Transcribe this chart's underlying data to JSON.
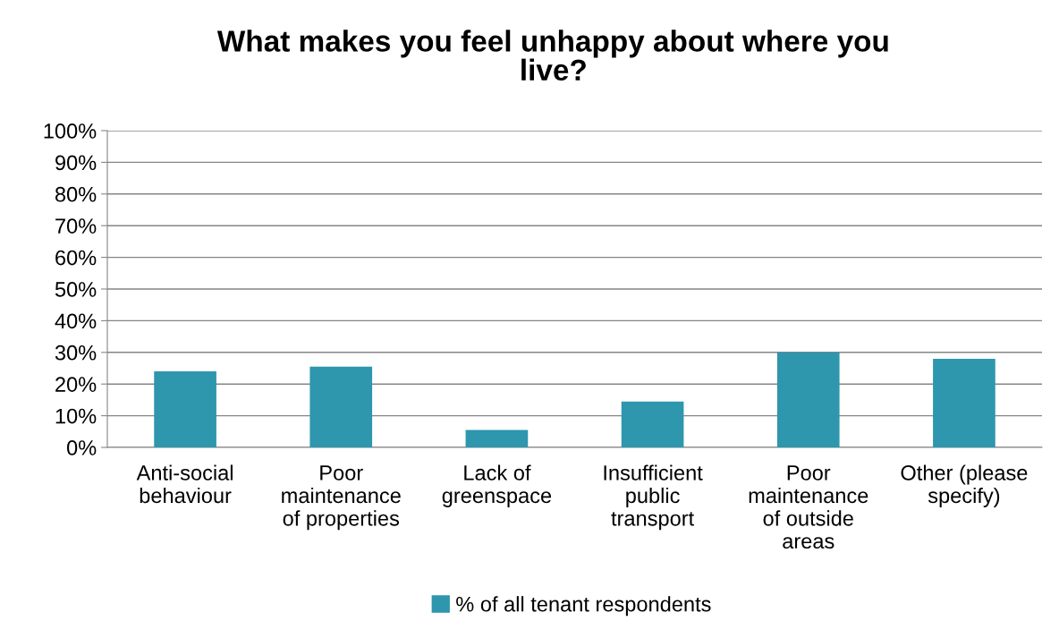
{
  "chart_data": {
    "type": "bar",
    "title": "What makes you feel unhappy about where you\nlive?",
    "categories": [
      "Anti-social\nbehaviour",
      "Poor\nmaintenance\nof properties",
      "Lack of\ngreenspace",
      "Insufficient\npublic\ntransport",
      "Poor\nmaintenance\nof outside\nareas",
      "Other (please\nspecify)"
    ],
    "series": [
      {
        "name": "% of all tenant respondents",
        "color": "#2e96ad",
        "values": [
          24,
          25.5,
          5.5,
          14.5,
          30,
          28
        ]
      }
    ],
    "ylim": [
      0,
      100
    ],
    "yticks": [
      {
        "value": 0,
        "label": "0%"
      },
      {
        "value": 10,
        "label": "10%"
      },
      {
        "value": 20,
        "label": "20%"
      },
      {
        "value": 30,
        "label": "30%"
      },
      {
        "value": 40,
        "label": "40%"
      },
      {
        "value": 50,
        "label": "50%"
      },
      {
        "value": 60,
        "label": "60%"
      },
      {
        "value": 70,
        "label": "70%"
      },
      {
        "value": 80,
        "label": "80%"
      },
      {
        "value": 90,
        "label": "90%"
      },
      {
        "value": 100,
        "label": "100%"
      }
    ],
    "grid": "y",
    "legend": "bottom"
  }
}
